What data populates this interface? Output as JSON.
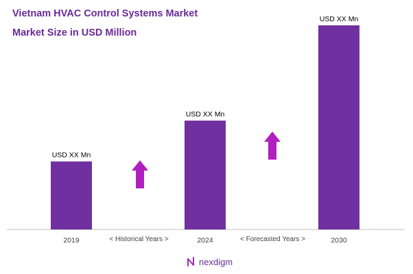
{
  "title": "Vietnam HVAC Control Systems Market",
  "subtitle": "Market Size in USD Million",
  "colors": {
    "bar": "#7030a0",
    "arrow": "#b21fbf",
    "title": "#6a2a96",
    "axis": "#bfbfbf"
  },
  "chart_data": {
    "type": "bar",
    "categories": [
      "2019",
      "2024",
      "2030"
    ],
    "values": [
      1,
      1.6,
      3
    ],
    "data_labels": [
      "USD XX Mn",
      "USD XX Mn",
      "USD XX Mn"
    ],
    "period_labels": [
      "< Historical Years >",
      "< Forecasted Years >"
    ],
    "growth_arrows": [
      "up",
      "up"
    ],
    "grid": false,
    "legend": "none"
  },
  "brand": {
    "name": "nexdigm"
  }
}
